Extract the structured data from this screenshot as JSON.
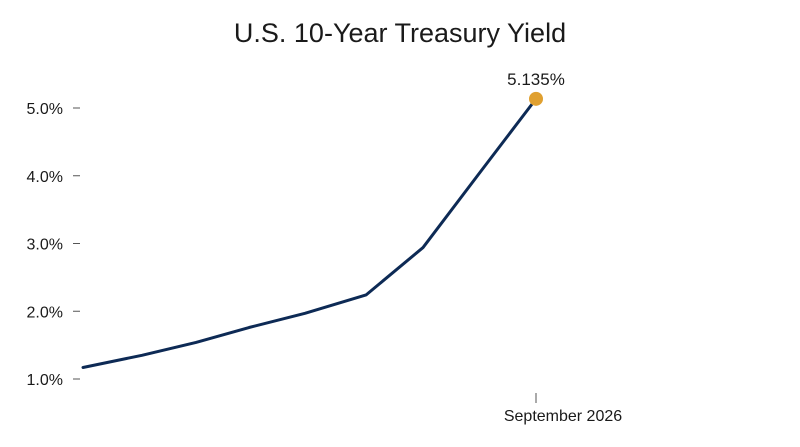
{
  "chart_data": {
    "type": "line",
    "title": "U.S. 10-Year Treasury Yield",
    "xlabel": "",
    "ylabel": "",
    "x_tick_labels": [
      "September 2026"
    ],
    "y_ticks": [
      1.0,
      2.0,
      3.0,
      4.0,
      5.0
    ],
    "y_tick_labels": [
      "1.0%",
      "2.0%",
      "3.0%",
      "4.0%",
      "5.0%"
    ],
    "ylim": [
      1.0,
      5.0
    ],
    "grid": false,
    "series": [
      {
        "values": [
          1.17,
          1.35,
          1.54,
          1.76,
          1.97,
          2.24,
          2.94,
          4.05,
          5.135
        ]
      }
    ],
    "annotations": [
      {
        "point_index": 8,
        "text": "5.135%"
      }
    ],
    "colors": {
      "line": "#0d2a55",
      "marker": "#e0a030",
      "axis_tick": "#555555",
      "text": "#1a1a1a"
    }
  }
}
